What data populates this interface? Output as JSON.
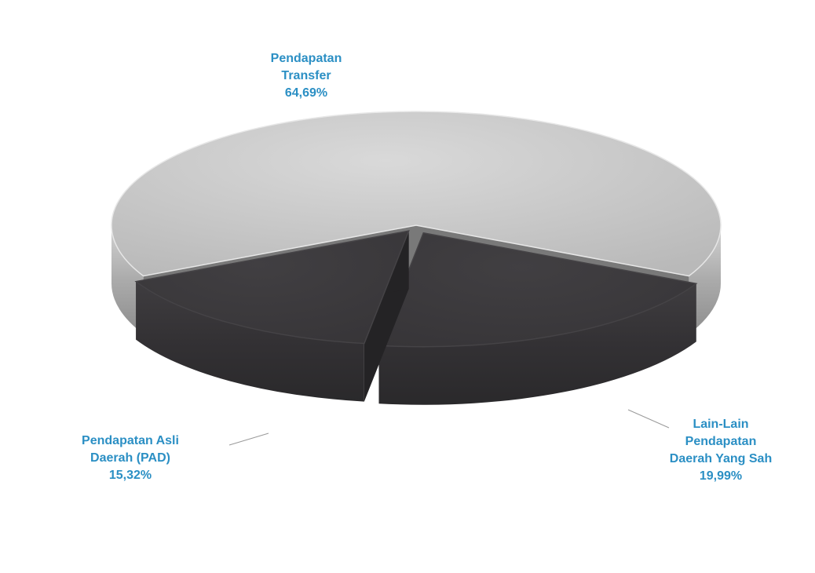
{
  "chart_data": {
    "type": "pie",
    "title": "",
    "slices": [
      {
        "label_lines": [
          "Pendapatan",
          "Transfer"
        ],
        "percent_text": "64,69%",
        "value": 64.69,
        "color": "#c9c9c9"
      },
      {
        "label_lines": [
          "Lain-Lain",
          "Pendapatan",
          "Daerah Yang Sah"
        ],
        "percent_text": "19,99%",
        "value": 19.99,
        "color": "#3c3a3d"
      },
      {
        "label_lines": [
          "Pendapatan Asli",
          "Daerah (PAD)"
        ],
        "percent_text": "15,32%",
        "value": 15.32,
        "color": "#3c3a3d"
      }
    ],
    "label_color": "#2b8fc4",
    "three_d": true,
    "legend": "none"
  }
}
